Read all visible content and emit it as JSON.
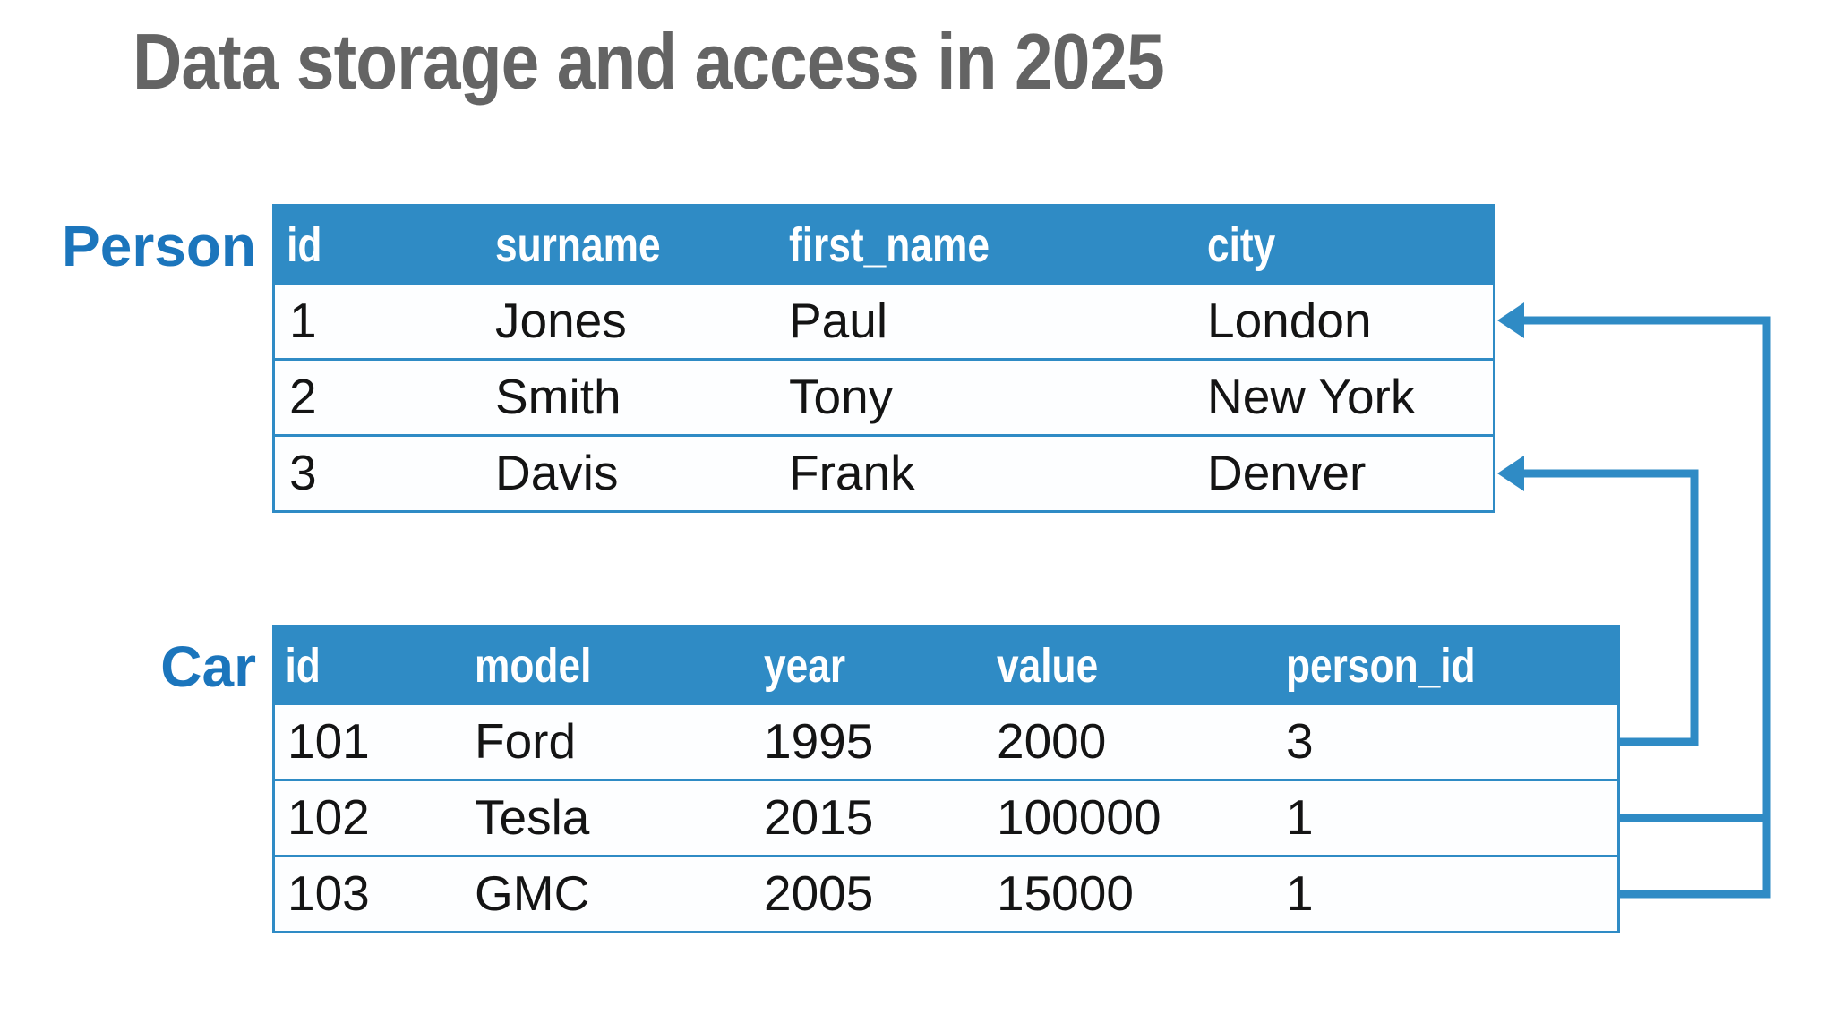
{
  "slide": {
    "title": "Data storage and access in 2025"
  },
  "colors": {
    "accent_blue": "#2F8BC5",
    "label_blue": "#1B75BC",
    "title_gray": "#646464",
    "header_text": "#FFFFFF",
    "row_text": "#141414"
  },
  "person_table": {
    "label": "Person",
    "columns": [
      "id",
      "surname",
      "first_name",
      "city"
    ],
    "rows": [
      [
        "1",
        "Jones",
        "Paul",
        "London"
      ],
      [
        "2",
        "Smith",
        "Tony",
        "New York"
      ],
      [
        "3",
        "Davis",
        "Frank",
        "Denver"
      ]
    ]
  },
  "car_table": {
    "label": "Car",
    "columns": [
      "id",
      "model",
      "year",
      "value",
      "person_id"
    ],
    "rows": [
      [
        "101",
        "Ford",
        "1995",
        "2000",
        "3"
      ],
      [
        "102",
        "Tesla",
        "2015",
        "100000",
        "1"
      ],
      [
        "103",
        "GMC",
        "2005",
        "15000",
        "1"
      ]
    ]
  },
  "relationships": [
    {
      "from_row": "car 101",
      "key": "person_id 3",
      "to_row": "person 3 (Denver)"
    },
    {
      "from_row": "car 102",
      "key": "person_id 1",
      "to_row": "person 1 (London)"
    },
    {
      "from_row": "car 103",
      "key": "person_id 1",
      "to_row": "person 1 (London)"
    }
  ]
}
